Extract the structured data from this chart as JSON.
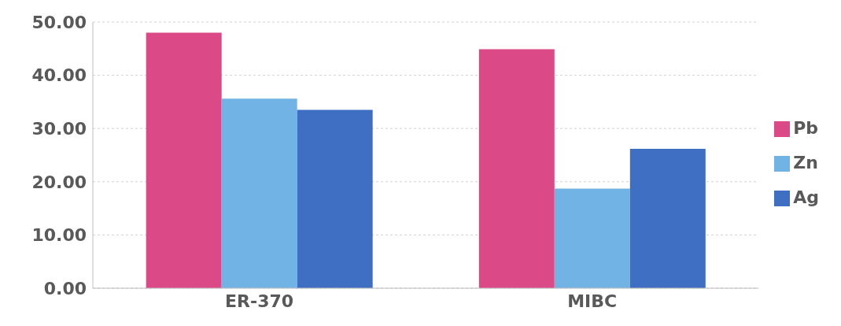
{
  "chart_data": {
    "type": "bar",
    "categories": [
      "ER-370",
      "MIBC"
    ],
    "series": [
      {
        "name": "Pb",
        "color": "#db4a86",
        "values": [
          48.0,
          44.9
        ]
      },
      {
        "name": "Zn",
        "color": "#72b3e6",
        "values": [
          35.6,
          18.7
        ]
      },
      {
        "name": "Ag",
        "color": "#3f6fc2",
        "values": [
          33.5,
          26.2
        ]
      }
    ],
    "ylim": [
      0,
      50
    ],
    "yticks": [
      {
        "value": 0,
        "label": "0.00"
      },
      {
        "value": 10,
        "label": "10.00"
      },
      {
        "value": 20,
        "label": "20.00"
      },
      {
        "value": 30,
        "label": "30.00"
      },
      {
        "value": 40,
        "label": "40.00"
      },
      {
        "value": 50,
        "label": "50.00"
      }
    ],
    "grid": "y",
    "legend": "right"
  }
}
